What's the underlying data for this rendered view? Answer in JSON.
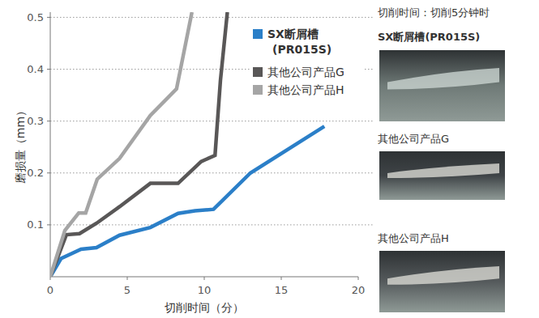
{
  "chart_data": {
    "type": "line",
    "x_label": "切削时间（分）",
    "y_label": "磨损量（mm）",
    "xlim": [
      0,
      20
    ],
    "xticks": [
      0,
      5,
      10,
      15,
      20
    ],
    "ylim": [
      0,
      0.51
    ],
    "yticks": [
      0.1,
      0.2,
      0.3,
      0.4,
      0.5
    ],
    "grid": true,
    "legend": "upper right",
    "series": [
      {
        "name": "SX断屑槽(PR015S)",
        "color": "#2b7fc8",
        "x": [
          0,
          0.7,
          2,
          3,
          4.5,
          6.5,
          8.3,
          9.4,
          10.6,
          13,
          17.8
        ],
        "values": [
          0,
          0.035,
          0.053,
          0.056,
          0.08,
          0.095,
          0.122,
          0.127,
          0.13,
          0.2,
          0.29
        ]
      },
      {
        "name": "其他公司产品G",
        "color": "#595757",
        "x": [
          0,
          1.05,
          1.9,
          3,
          4.5,
          6.5,
          8.3,
          9.8,
          10.7,
          11.05,
          11.5
        ],
        "values": [
          0,
          0.081,
          0.083,
          0.103,
          0.135,
          0.18,
          0.18,
          0.222,
          0.234,
          0.378,
          0.51
        ]
      },
      {
        "name": "其他公司产品H",
        "color": "#a5a5a5",
        "x": [
          0,
          0.95,
          1.85,
          2.3,
          3.05,
          4.5,
          6.5,
          8.2,
          9.2
        ],
        "values": [
          0,
          0.089,
          0.123,
          0.123,
          0.188,
          0.228,
          0.311,
          0.362,
          0.51
        ]
      }
    ]
  },
  "photos": {
    "title": "切削时间：切削5分钟时",
    "items": [
      "SX断屑槽(PR015S)",
      "其他公司产品G",
      "其他公司产品H"
    ]
  }
}
